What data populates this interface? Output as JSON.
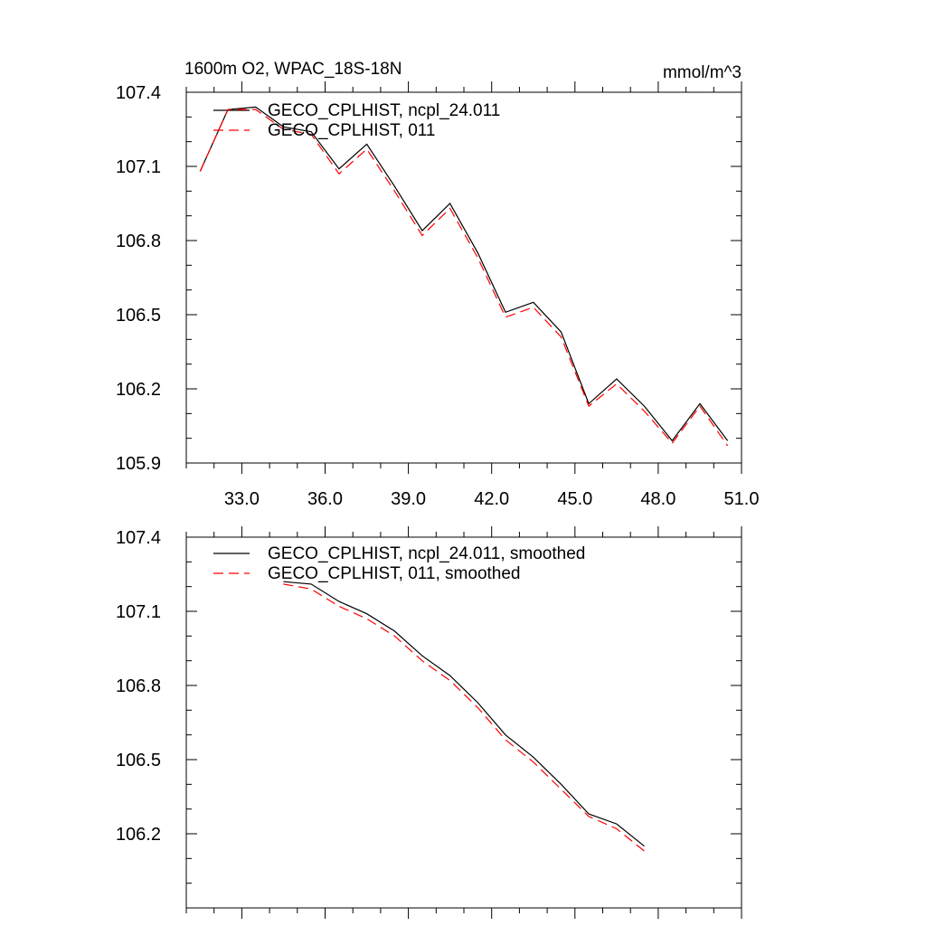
{
  "chart_data": [
    {
      "type": "line",
      "title": "1600m O2, WPAC_18S-18N",
      "units": "mmol/m^3",
      "xlim": [
        31,
        51
      ],
      "ylim": [
        105.9,
        107.4
      ],
      "xticks": [
        "33.0",
        "36.0",
        "39.0",
        "42.0",
        "45.0",
        "48.0",
        "51.0"
      ],
      "yticks": [
        "105.9",
        "106.2",
        "106.5",
        "106.8",
        "107.1",
        "107.4"
      ],
      "x": [
        31.5,
        32.5,
        33.5,
        34.5,
        35.5,
        36.5,
        37.5,
        38.5,
        39.5,
        40.5,
        41.5,
        42.5,
        43.5,
        44.5,
        45.5,
        46.5,
        47.5,
        48.5,
        49.5,
        50.5
      ],
      "series": [
        {
          "name": "GECO_CPLHIST, ncpl_24.011",
          "color": "#000000",
          "dash": "solid",
          "values": [
            107.08,
            107.33,
            107.34,
            107.26,
            107.24,
            107.09,
            107.19,
            107.02,
            106.84,
            106.95,
            106.75,
            106.51,
            106.55,
            106.43,
            106.14,
            106.24,
            106.13,
            105.99,
            106.14,
            105.99
          ]
        },
        {
          "name": "GECO_CPLHIST, 011",
          "color": "#ff0000",
          "dash": "dashed",
          "values": [
            107.08,
            107.33,
            107.33,
            107.25,
            107.23,
            107.07,
            107.17,
            107.0,
            106.82,
            106.93,
            106.73,
            106.49,
            106.53,
            106.41,
            106.13,
            106.22,
            106.11,
            105.98,
            106.13,
            105.97
          ]
        }
      ]
    },
    {
      "type": "line",
      "xlim": [
        31,
        51
      ],
      "ylim": [
        105.9,
        107.4
      ],
      "xticks": [
        "",
        "",
        "",
        "",
        "",
        "",
        ""
      ],
      "yticks": [
        "106.2",
        "106.5",
        "106.8",
        "107.1",
        "107.4"
      ],
      "x": [
        34.5,
        35.5,
        36.5,
        37.5,
        38.5,
        39.5,
        40.5,
        41.5,
        42.5,
        43.5,
        44.5,
        45.5,
        46.5,
        47.5
      ],
      "series": [
        {
          "name": "GECO_CPLHIST, ncpl_24.011, smoothed",
          "color": "#000000",
          "dash": "solid",
          "values": [
            107.22,
            107.21,
            107.14,
            107.09,
            107.02,
            106.92,
            106.84,
            106.73,
            106.6,
            106.51,
            106.4,
            106.28,
            106.24,
            106.15
          ]
        },
        {
          "name": "GECO_CPLHIST, 011, smoothed",
          "color": "#ff0000",
          "dash": "dashed",
          "values": [
            107.21,
            107.19,
            107.12,
            107.07,
            107.0,
            106.9,
            106.82,
            106.71,
            106.58,
            106.49,
            106.38,
            106.27,
            106.22,
            106.13
          ]
        }
      ]
    }
  ]
}
